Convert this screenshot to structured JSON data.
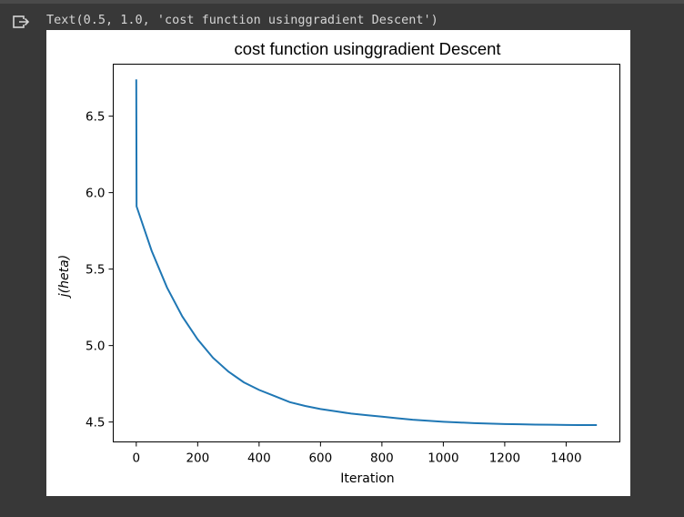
{
  "output": {
    "repr_text": "Text(0.5, 1.0, 'cost function usinggradient Descent')",
    "icon": "output-arrow-icon"
  },
  "colors": {
    "background": "#383838",
    "figure_background": "#ffffff",
    "line": "#1f77b4",
    "text": "#000000",
    "output_text": "#d5d5d5"
  },
  "chart_data": {
    "type": "line",
    "title": "cost function usinggradient Descent",
    "xlabel": "Iteration",
    "ylabel": "j(heta)",
    "xlim": [
      -75,
      1575
    ],
    "ylim": [
      4.37,
      6.84
    ],
    "xticks": [
      0,
      200,
      400,
      600,
      800,
      1000,
      1200,
      1400
    ],
    "yticks": [
      4.5,
      5.0,
      5.5,
      6.0,
      6.5
    ],
    "xtick_labels": [
      "0",
      "200",
      "400",
      "600",
      "800",
      "1000",
      "1200",
      "1400"
    ],
    "ytick_labels": [
      "4.5",
      "5.0",
      "5.5",
      "6.0",
      "6.5"
    ],
    "grid": false,
    "series": [
      {
        "x": [
          0,
          1,
          50,
          100,
          150,
          200,
          250,
          300,
          350,
          400,
          450,
          500,
          550,
          600,
          650,
          700,
          750,
          800,
          850,
          900,
          950,
          1000,
          1050,
          1100,
          1150,
          1200,
          1250,
          1300,
          1350,
          1400,
          1450,
          1500
        ],
        "y": [
          6.74,
          5.91,
          5.62,
          5.38,
          5.19,
          5.04,
          4.92,
          4.83,
          4.76,
          4.71,
          4.67,
          4.63,
          4.605,
          4.585,
          4.57,
          4.555,
          4.545,
          4.535,
          4.525,
          4.515,
          4.508,
          4.502,
          4.497,
          4.493,
          4.49,
          4.487,
          4.485,
          4.483,
          4.482,
          4.481,
          4.48,
          4.48
        ]
      }
    ]
  }
}
